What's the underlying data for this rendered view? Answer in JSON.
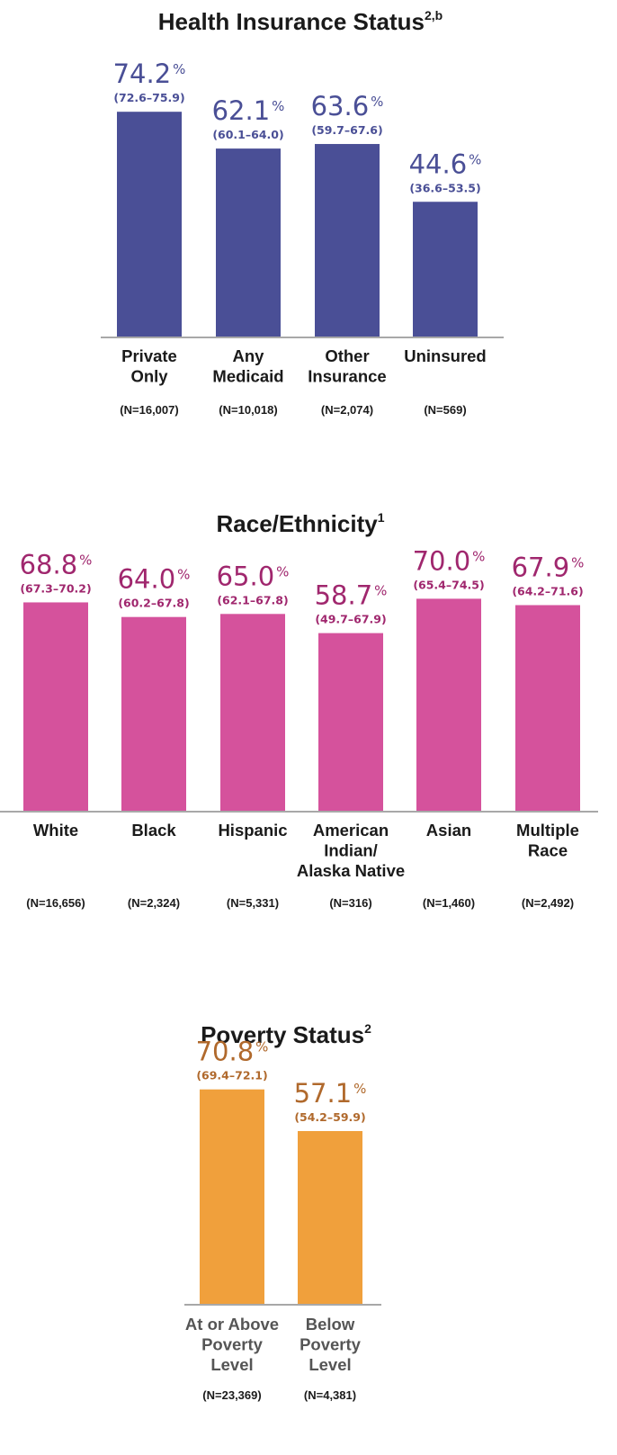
{
  "chart_data": [
    {
      "type": "bar",
      "title": "Health Insurance Status",
      "title_sup": "2,b",
      "color": "#4a4f96",
      "label_color": "#4a4f96",
      "categories": [
        [
          "Private",
          "Only"
        ],
        [
          "Any",
          "Medicaid"
        ],
        [
          "Other",
          "Insurance"
        ],
        [
          "Uninsured"
        ]
      ],
      "values": [
        74.2,
        62.1,
        63.6,
        44.6
      ],
      "value_labels": [
        "74.2",
        "62.1",
        "63.6",
        "44.6"
      ],
      "value_unit": "%",
      "ci": [
        "(72.6–75.9)",
        "(60.1–64.0)",
        "(59.7–67.6)",
        "(36.6–53.5)"
      ],
      "n": [
        "(N=16,007)",
        "(N=10,018)",
        "(N=2,074)",
        "(N=569)"
      ]
    },
    {
      "type": "bar",
      "title": "Race/Ethnicity",
      "title_sup": "1",
      "color": "#d5529c",
      "label_color": "#a0276e",
      "categories": [
        [
          "White"
        ],
        [
          "Black"
        ],
        [
          "Hispanic"
        ],
        [
          "American",
          "Indian/",
          "Alaska Native"
        ],
        [
          "Asian"
        ],
        [
          "Multiple",
          "Race"
        ]
      ],
      "values": [
        68.8,
        64.0,
        65.0,
        58.7,
        70.0,
        67.9
      ],
      "value_labels": [
        "68.8",
        "64.0",
        "65.0",
        "58.7",
        "70.0",
        "67.9"
      ],
      "value_unit": "%",
      "ci": [
        "(67.3–70.2)",
        "(60.2–67.8)",
        "(62.1–67.8)",
        "(49.7–67.9)",
        "(65.4–74.5)",
        "(64.2–71.6)"
      ],
      "n": [
        "(N=16,656)",
        "(N=2,324)",
        "(N=5,331)",
        "(N=316)",
        "(N=1,460)",
        "(N=2,492)"
      ]
    },
    {
      "type": "bar",
      "title": "Poverty Status",
      "title_sup": "2",
      "color": "#f0a03c",
      "label_color": "#b0692c",
      "categories": [
        [
          "At or Above",
          "Poverty",
          "Level"
        ],
        [
          "Below",
          "Poverty",
          "Level"
        ]
      ],
      "values": [
        70.8,
        57.1
      ],
      "value_labels": [
        "70.8",
        "57.1"
      ],
      "value_unit": "%",
      "ci": [
        "(69.4–72.1)",
        "(54.2–59.9)"
      ],
      "n": [
        "(N=23,369)",
        "(N=4,381)"
      ]
    }
  ]
}
